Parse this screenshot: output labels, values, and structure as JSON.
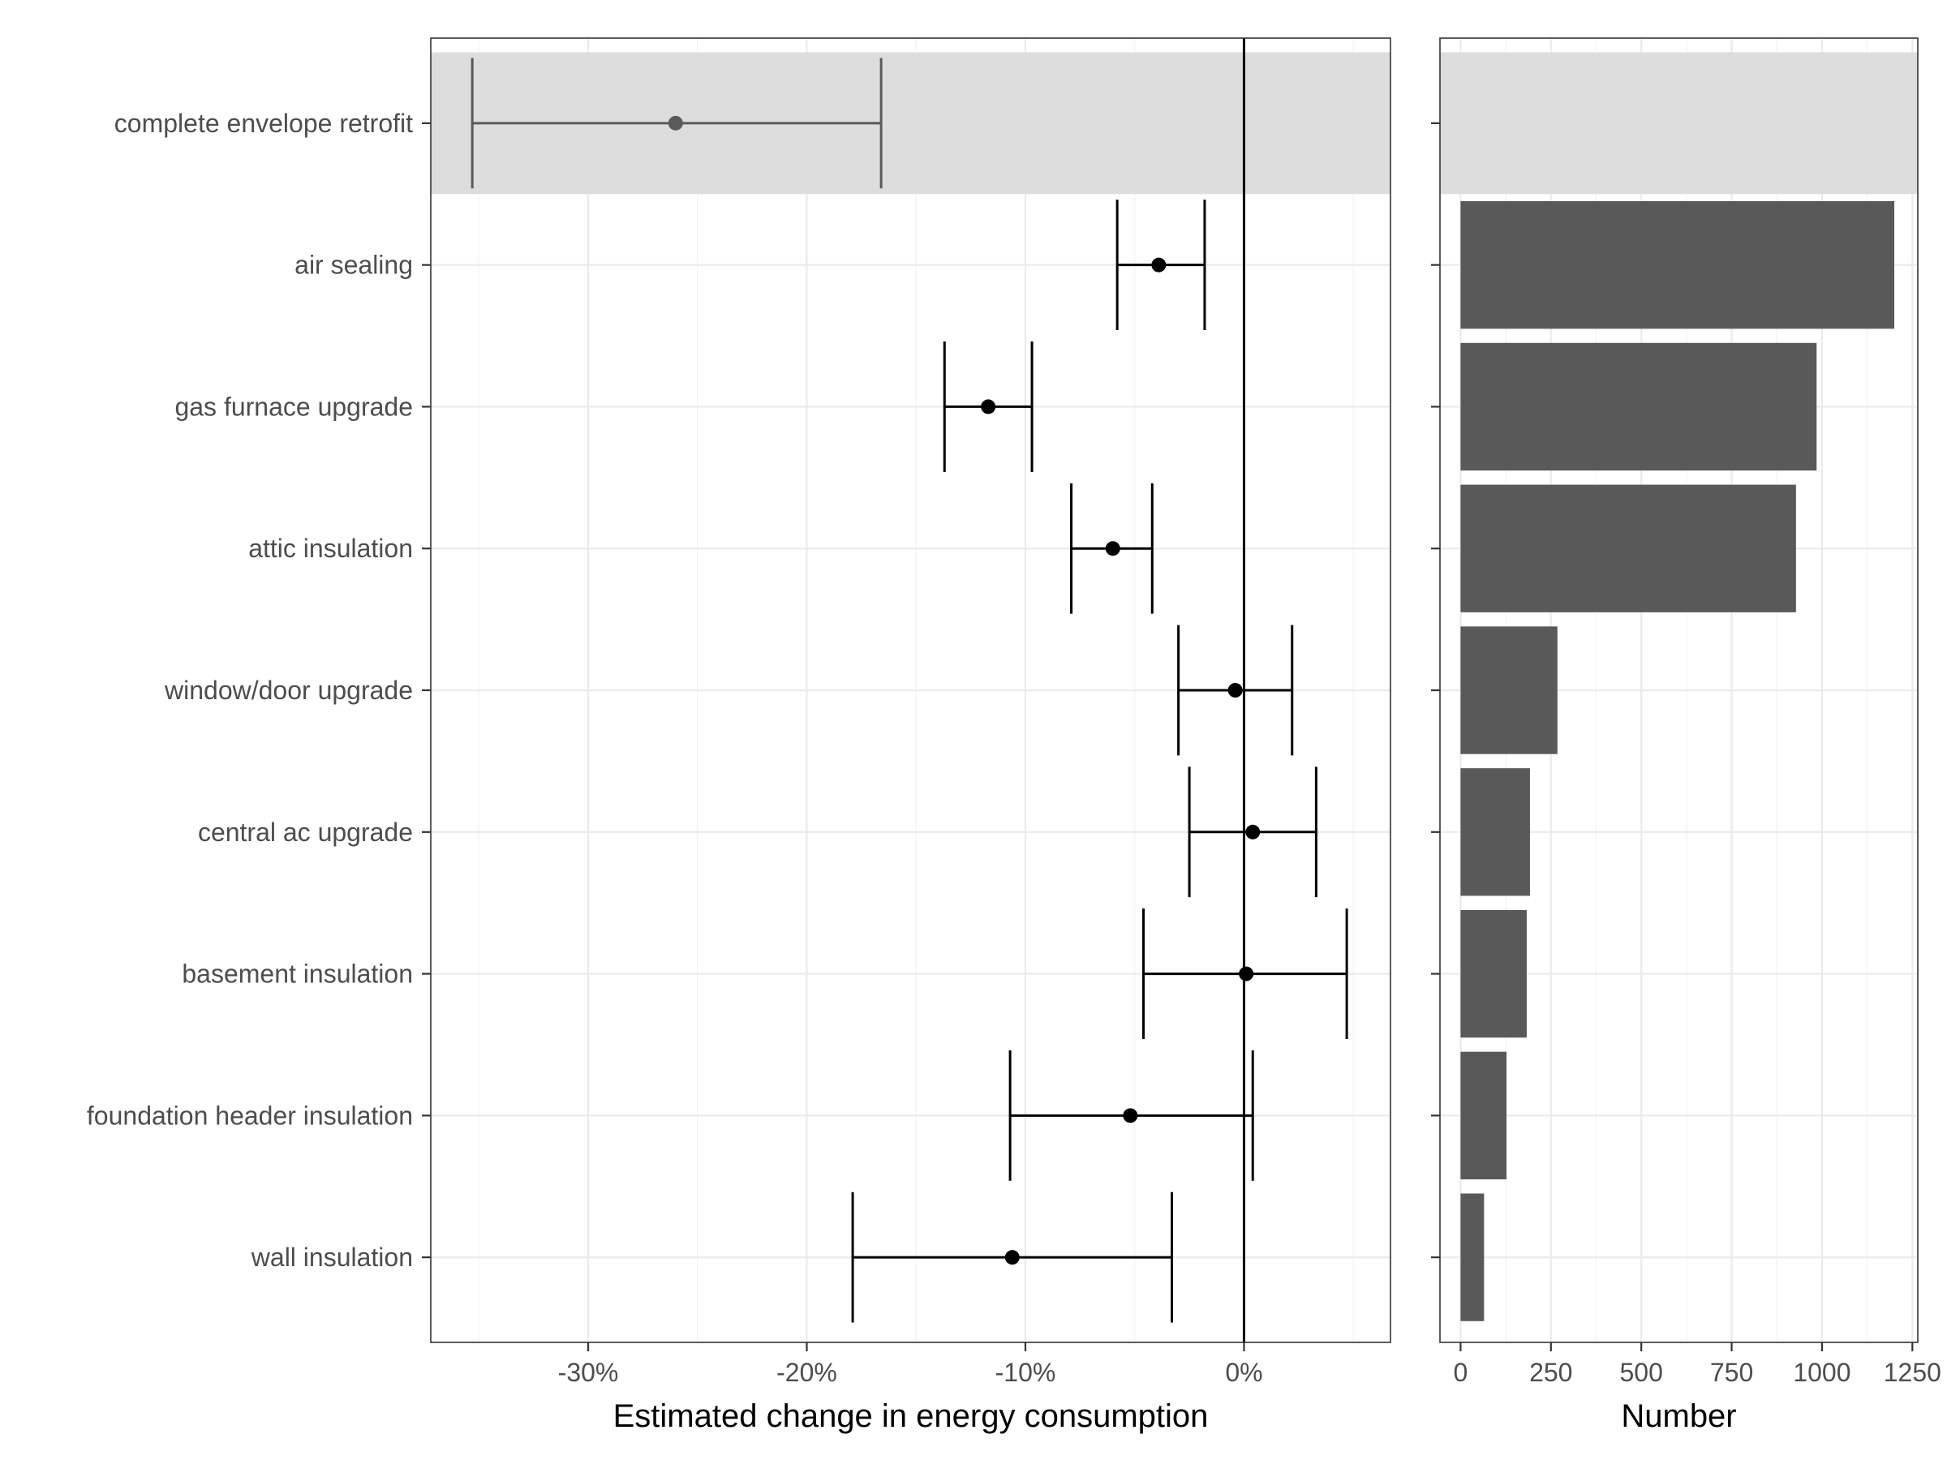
{
  "chart_data": [
    {
      "type": "forest",
      "xlabel": "Estimated change in energy consumption",
      "ylabel": "",
      "xlim": [
        -37.2,
        6.7
      ],
      "x_ticks": [
        -30,
        -20,
        -10,
        0
      ],
      "x_tick_labels": [
        "-30%",
        "-20%",
        "-10%",
        "0%"
      ],
      "reference_line": 0,
      "grid": true,
      "highlight_category": "complete envelope retrofit",
      "categories": [
        "complete envelope retrofit",
        "air sealing",
        "gas furnace upgrade",
        "attic insulation",
        "window/door upgrade",
        "central ac upgrade",
        "basement insulation",
        "foundation header insulation",
        "wall insulation"
      ],
      "estimates": [
        -26.0,
        -3.9,
        -11.7,
        -6.0,
        -0.4,
        0.4,
        0.1,
        -5.2,
        -10.6
      ],
      "lower": [
        -35.3,
        -5.8,
        -13.7,
        -7.9,
        -3.0,
        -2.5,
        -4.6,
        -10.7,
        -17.9
      ],
      "upper": [
        -16.6,
        -1.8,
        -9.7,
        -4.2,
        2.2,
        3.3,
        4.7,
        0.4,
        -3.3
      ]
    },
    {
      "type": "bar",
      "orientation": "horizontal",
      "xlabel": "Number",
      "ylabel": "",
      "xlim": [
        -57,
        1265
      ],
      "x_ticks": [
        0,
        250,
        500,
        750,
        1000,
        1250
      ],
      "x_tick_labels": [
        "0",
        "250",
        "500",
        "750",
        "1000",
        "1250"
      ],
      "grid": true,
      "categories": [
        "complete envelope retrofit",
        "air sealing",
        "gas furnace upgrade",
        "attic insulation",
        "window/door upgrade",
        "central ac upgrade",
        "basement insulation",
        "foundation header insulation",
        "wall insulation"
      ],
      "values": [
        null,
        1200,
        985,
        928,
        268,
        192,
        183,
        127,
        65
      ]
    }
  ],
  "colors": {
    "background": "#ffffff",
    "panel_border": "#333333",
    "grid_major": "#ebebeb",
    "grid_minor": "#f2f2f2",
    "highlight_band": "#dddddd",
    "estimate": "#000000",
    "highlight_estimate": "#5a5a5a",
    "bar_fill": "#595959",
    "tick_label": "#4d4d4d",
    "axis_title": "#000000"
  }
}
